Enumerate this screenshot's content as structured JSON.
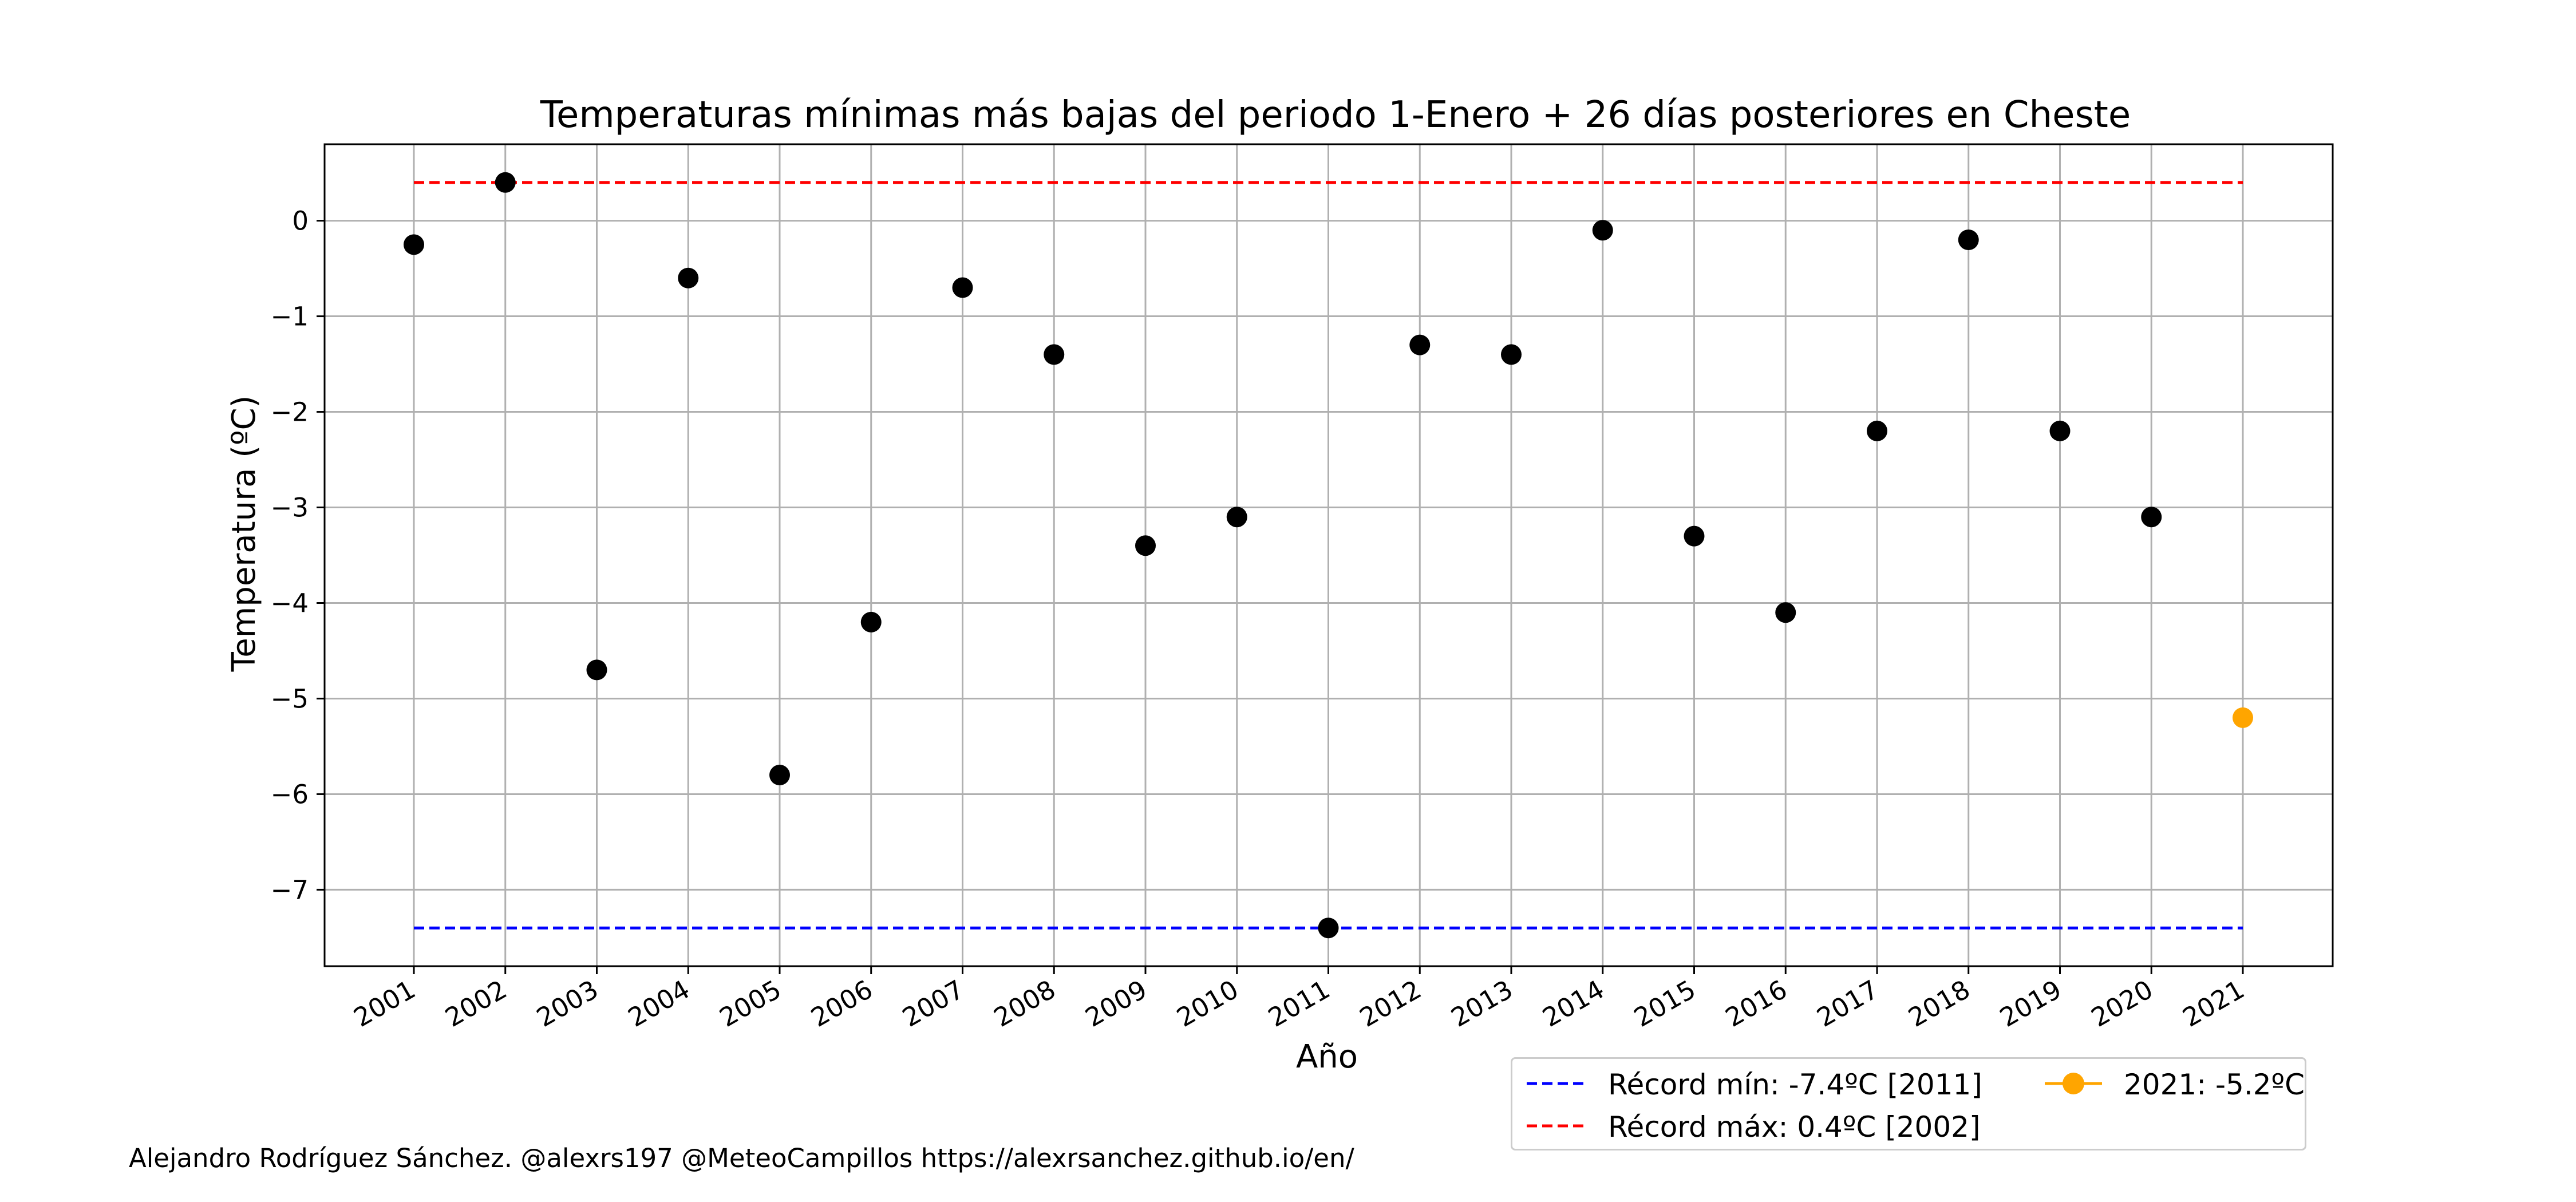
{
  "chart_data": {
    "type": "scatter",
    "title": "Temperaturas mínimas más bajas del periodo 1-Enero + 26 días posteriores en Cheste",
    "xlabel": "Año",
    "ylabel": "Temperatura (ºC)",
    "x": [
      2001,
      2002,
      2003,
      2004,
      2005,
      2006,
      2007,
      2008,
      2009,
      2010,
      2011,
      2012,
      2013,
      2014,
      2015,
      2016,
      2017,
      2018,
      2019,
      2020,
      2021
    ],
    "x_tick_labels": [
      "2001",
      "2002",
      "2003",
      "2004",
      "2005",
      "2006",
      "2007",
      "2008",
      "2009",
      "2010",
      "2011",
      "2012",
      "2013",
      "2014",
      "2015",
      "2016",
      "2017",
      "2018",
      "2019",
      "2020",
      "2021"
    ],
    "y_ticks": [
      0,
      -1,
      -2,
      -3,
      -4,
      -5,
      -6,
      -7
    ],
    "y_tick_labels": [
      "0",
      "−1",
      "−2",
      "−3",
      "−4",
      "−5",
      "−6",
      "−7"
    ],
    "ylim": [
      -7.8,
      0.8
    ],
    "grid": true,
    "series": [
      {
        "values": [
          -0.25,
          0.4,
          -4.7,
          -0.6,
          -5.8,
          -4.2,
          -0.7,
          -1.4,
          -3.4,
          -3.1,
          -7.4,
          -1.3,
          -1.4,
          -0.1,
          -3.3,
          -4.1,
          -2.2,
          -0.2,
          -2.2,
          -3.1,
          null
        ],
        "color": "#000000",
        "marker": "circle"
      },
      {
        "values": [
          null,
          null,
          null,
          null,
          null,
          null,
          null,
          null,
          null,
          null,
          null,
          null,
          null,
          null,
          null,
          null,
          null,
          null,
          null,
          null,
          -5.2
        ],
        "color": "#ffa500",
        "marker": "circle"
      }
    ],
    "reference_lines": [
      {
        "y": -7.4,
        "color": "#0000ff",
        "style": "dashed"
      },
      {
        "y": 0.4,
        "color": "#ff0000",
        "style": "dashed"
      }
    ],
    "legend": {
      "placement": "bottom-right",
      "entries": [
        {
          "label": "Récord mín: -7.4ºC [2011]",
          "color": "#0000ff",
          "style": "dashed"
        },
        {
          "label": "Récord máx: 0.4ºC [2002]",
          "color": "#ff0000",
          "style": "dashed"
        },
        {
          "label": "2021: -5.2ºC",
          "color": "#ffa500",
          "style": "line-marker"
        }
      ]
    }
  },
  "credit": "Alejandro Rodríguez Sánchez. @alexrs197 @MeteoCampillos   https://alexrsanchez.github.io/en/"
}
